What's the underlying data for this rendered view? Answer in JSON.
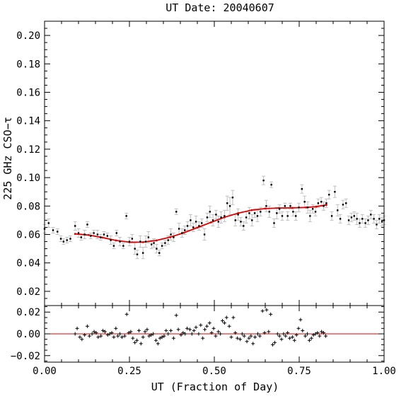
{
  "chart_data": [
    {
      "type": "scatter",
      "title": "UT Date: 20040607",
      "xlabel": "",
      "ylabel": "225 GHz CSO−τ",
      "xlim": [
        0.0,
        1.0
      ],
      "ylim": [
        0.01,
        0.21
      ],
      "yticks": [
        0.02,
        0.04,
        0.06,
        0.08,
        0.1,
        0.12,
        0.14,
        0.16,
        0.18,
        0.2
      ],
      "ytick_labels": [
        "0.02",
        "0.04",
        "0.06",
        "0.08",
        "0.10",
        "0.12",
        "0.14",
        "0.16",
        "0.18",
        "0.20"
      ],
      "grid": false,
      "colors": {
        "points": "#000000",
        "errorbars": "#c0c0c0",
        "fit": "#e00000"
      },
      "points": [
        [
          0.0,
          0.064,
          0.003
        ],
        [
          0.012,
          0.068,
          0.003
        ],
        [
          0.025,
          0.063,
          0.002
        ],
        [
          0.038,
          0.062,
          0.002
        ],
        [
          0.048,
          0.057,
          0.002
        ],
        [
          0.056,
          0.055,
          0.002
        ],
        [
          0.066,
          0.056,
          0.002
        ],
        [
          0.076,
          0.057,
          0.002
        ],
        [
          0.09,
          0.066,
          0.003
        ],
        [
          0.1,
          0.061,
          0.003
        ],
        [
          0.108,
          0.058,
          0.002
        ],
        [
          0.118,
          0.06,
          0.003
        ],
        [
          0.126,
          0.067,
          0.002
        ],
        [
          0.136,
          0.059,
          0.002
        ],
        [
          0.145,
          0.061,
          0.002
        ],
        [
          0.156,
          0.06,
          0.003
        ],
        [
          0.165,
          0.058,
          0.002
        ],
        [
          0.175,
          0.06,
          0.002
        ],
        [
          0.185,
          0.059,
          0.002
        ],
        [
          0.195,
          0.056,
          0.003
        ],
        [
          0.204,
          0.052,
          0.002
        ],
        [
          0.212,
          0.061,
          0.002
        ],
        [
          0.222,
          0.055,
          0.003
        ],
        [
          0.232,
          0.052,
          0.002
        ],
        [
          0.241,
          0.073,
          0.002
        ],
        [
          0.25,
          0.055,
          0.003
        ],
        [
          0.258,
          0.057,
          0.003
        ],
        [
          0.266,
          0.05,
          0.004
        ],
        [
          0.273,
          0.046,
          0.003
        ],
        [
          0.282,
          0.055,
          0.004
        ],
        [
          0.29,
          0.047,
          0.004
        ],
        [
          0.298,
          0.055,
          0.004
        ],
        [
          0.306,
          0.058,
          0.004
        ],
        [
          0.315,
          0.053,
          0.003
        ],
        [
          0.322,
          0.054,
          0.003
        ],
        [
          0.33,
          0.05,
          0.003
        ],
        [
          0.338,
          0.047,
          0.002
        ],
        [
          0.346,
          0.052,
          0.002
        ],
        [
          0.355,
          0.054,
          0.002
        ],
        [
          0.364,
          0.056,
          0.003
        ],
        [
          0.372,
          0.06,
          0.004
        ],
        [
          0.38,
          0.058,
          0.003
        ],
        [
          0.388,
          0.076,
          0.002
        ],
        [
          0.396,
          0.064,
          0.004
        ],
        [
          0.405,
          0.061,
          0.003
        ],
        [
          0.413,
          0.063,
          0.003
        ],
        [
          0.421,
          0.066,
          0.003
        ],
        [
          0.43,
          0.07,
          0.004
        ],
        [
          0.438,
          0.065,
          0.003
        ],
        [
          0.446,
          0.069,
          0.004
        ],
        [
          0.455,
          0.066,
          0.003
        ],
        [
          0.463,
          0.068,
          0.003
        ],
        [
          0.471,
          0.06,
          0.004
        ],
        [
          0.479,
          0.072,
          0.003
        ],
        [
          0.487,
          0.076,
          0.004
        ],
        [
          0.496,
          0.07,
          0.004
        ],
        [
          0.505,
          0.074,
          0.003
        ],
        [
          0.512,
          0.069,
          0.004
        ],
        [
          0.52,
          0.072,
          0.004
        ],
        [
          0.53,
          0.073,
          0.004
        ],
        [
          0.538,
          0.082,
          0.005
        ],
        [
          0.546,
          0.08,
          0.006
        ],
        [
          0.554,
          0.086,
          0.005
        ],
        [
          0.562,
          0.07,
          0.004
        ],
        [
          0.57,
          0.074,
          0.004
        ],
        [
          0.578,
          0.069,
          0.003
        ],
        [
          0.586,
          0.066,
          0.003
        ],
        [
          0.594,
          0.072,
          0.004
        ],
        [
          0.603,
          0.075,
          0.004
        ],
        [
          0.611,
          0.07,
          0.004
        ],
        [
          0.619,
          0.075,
          0.003
        ],
        [
          0.627,
          0.073,
          0.004
        ],
        [
          0.636,
          0.076,
          0.003
        ],
        [
          0.645,
          0.098,
          0.003
        ],
        [
          0.653,
          0.08,
          0.004
        ],
        [
          0.662,
          0.076,
          0.004
        ],
        [
          0.668,
          0.095,
          0.002
        ],
        [
          0.676,
          0.068,
          0.003
        ],
        [
          0.684,
          0.075,
          0.004
        ],
        [
          0.692,
          0.078,
          0.003
        ],
        [
          0.7,
          0.073,
          0.003
        ],
        [
          0.708,
          0.08,
          0.002
        ],
        [
          0.716,
          0.073,
          0.003
        ],
        [
          0.724,
          0.08,
          0.002
        ],
        [
          0.732,
          0.076,
          0.003
        ],
        [
          0.74,
          0.073,
          0.003
        ],
        [
          0.749,
          0.079,
          0.003
        ],
        [
          0.758,
          0.092,
          0.003
        ],
        [
          0.766,
          0.083,
          0.004
        ],
        [
          0.775,
          0.079,
          0.004
        ],
        [
          0.782,
          0.073,
          0.004
        ],
        [
          0.79,
          0.078,
          0.003
        ],
        [
          0.798,
          0.076,
          0.003
        ],
        [
          0.806,
          0.082,
          0.003
        ],
        [
          0.815,
          0.083,
          0.003
        ],
        [
          0.822,
          0.08,
          0.003
        ],
        [
          0.83,
          0.082,
          0.003
        ],
        [
          0.838,
          0.088,
          0.003
        ],
        [
          0.846,
          0.073,
          0.003
        ],
        [
          0.855,
          0.09,
          0.004
        ],
        [
          0.863,
          0.077,
          0.004
        ],
        [
          0.871,
          0.071,
          0.003
        ],
        [
          0.879,
          0.081,
          0.003
        ],
        [
          0.888,
          0.082,
          0.003
        ],
        [
          0.896,
          0.07,
          0.003
        ],
        [
          0.904,
          0.072,
          0.003
        ],
        [
          0.912,
          0.073,
          0.003
        ],
        [
          0.92,
          0.071,
          0.004
        ],
        [
          0.928,
          0.068,
          0.003
        ],
        [
          0.936,
          0.071,
          0.003
        ],
        [
          0.945,
          0.068,
          0.003
        ],
        [
          0.953,
          0.07,
          0.003
        ],
        [
          0.961,
          0.074,
          0.003
        ],
        [
          0.97,
          0.071,
          0.003
        ],
        [
          0.978,
          0.067,
          0.003
        ],
        [
          0.986,
          0.071,
          0.003
        ],
        [
          0.994,
          0.069,
          0.003
        ],
        [
          1.0,
          0.07,
          0.003
        ]
      ],
      "fit_curve": [
        [
          0.09,
          0.0604
        ],
        [
          0.13,
          0.0596
        ],
        [
          0.17,
          0.0578
        ],
        [
          0.21,
          0.0558
        ],
        [
          0.25,
          0.0546
        ],
        [
          0.29,
          0.0546
        ],
        [
          0.33,
          0.0558
        ],
        [
          0.37,
          0.0581
        ],
        [
          0.41,
          0.0612
        ],
        [
          0.45,
          0.0648
        ],
        [
          0.49,
          0.0685
        ],
        [
          0.53,
          0.0721
        ],
        [
          0.57,
          0.075
        ],
        [
          0.61,
          0.0771
        ],
        [
          0.65,
          0.0782
        ],
        [
          0.69,
          0.0786
        ],
        [
          0.73,
          0.0787
        ],
        [
          0.77,
          0.079
        ],
        [
          0.8,
          0.0796
        ],
        [
          0.83,
          0.0808
        ]
      ]
    },
    {
      "type": "scatter",
      "title": "",
      "xlabel": "UT (Fraction of Day)",
      "ylabel": "",
      "xlim": [
        0.0,
        1.0
      ],
      "ylim": [
        -0.026,
        0.026
      ],
      "xticks": [
        0.0,
        0.25,
        0.5,
        0.75,
        1.0
      ],
      "xtick_labels": [
        "0.00",
        "0.25",
        "0.50",
        "0.75",
        "1.00"
      ],
      "yticks": [
        -0.02,
        0.0,
        0.02
      ],
      "ytick_labels": [
        "−0.02",
        "0.00",
        "0.02"
      ],
      "zero_line": 0.0,
      "grid": false,
      "colors": {
        "points": "#000000",
        "zero_line": "#e00000"
      },
      "residuals": [
        [
          0.09,
          0.0
        ],
        [
          0.096,
          0.005
        ],
        [
          0.104,
          -0.003
        ],
        [
          0.11,
          -0.005
        ],
        [
          0.118,
          -0.001
        ],
        [
          0.126,
          0.007
        ],
        [
          0.132,
          -0.002
        ],
        [
          0.14,
          0.0
        ],
        [
          0.146,
          0.002
        ],
        [
          0.152,
          0.001
        ],
        [
          0.158,
          -0.003
        ],
        [
          0.166,
          -0.002
        ],
        [
          0.172,
          0.003
        ],
        [
          0.178,
          0.002
        ],
        [
          0.186,
          -0.001
        ],
        [
          0.192,
          0.0
        ],
        [
          0.198,
          0.001
        ],
        [
          0.204,
          -0.003
        ],
        [
          0.21,
          0.005
        ],
        [
          0.216,
          -0.002
        ],
        [
          0.222,
          0.0
        ],
        [
          0.228,
          -0.003
        ],
        [
          0.236,
          -0.002
        ],
        [
          0.242,
          0.018
        ],
        [
          0.248,
          0.001
        ],
        [
          0.254,
          0.002
        ],
        [
          0.26,
          -0.004
        ],
        [
          0.266,
          -0.008
        ],
        [
          0.272,
          -0.006
        ],
        [
          0.278,
          0.003
        ],
        [
          0.284,
          -0.009
        ],
        [
          0.29,
          -0.003
        ],
        [
          0.296,
          0.002
        ],
        [
          0.302,
          0.004
        ],
        [
          0.308,
          -0.002
        ],
        [
          0.314,
          -0.001
        ],
        [
          0.32,
          0.0
        ],
        [
          0.328,
          -0.006
        ],
        [
          0.334,
          -0.009
        ],
        [
          0.34,
          -0.004
        ],
        [
          0.346,
          -0.003
        ],
        [
          0.352,
          -0.002
        ],
        [
          0.358,
          0.003
        ],
        [
          0.364,
          0.0
        ],
        [
          0.372,
          0.003
        ],
        [
          0.38,
          -0.004
        ],
        [
          0.388,
          0.017
        ],
        [
          0.394,
          0.004
        ],
        [
          0.402,
          -0.001
        ],
        [
          0.408,
          0.001
        ],
        [
          0.414,
          0.0
        ],
        [
          0.42,
          0.005
        ],
        [
          0.428,
          0.004
        ],
        [
          0.434,
          0.0
        ],
        [
          0.44,
          0.003
        ],
        [
          0.446,
          0.006
        ],
        [
          0.454,
          0.0
        ],
        [
          0.46,
          0.008
        ],
        [
          0.466,
          -0.004
        ],
        [
          0.472,
          0.004
        ],
        [
          0.478,
          0.007
        ],
        [
          0.486,
          0.01
        ],
        [
          0.492,
          0.001
        ],
        [
          0.498,
          0.005
        ],
        [
          0.504,
          -0.002
        ],
        [
          0.512,
          0.002
        ],
        [
          0.518,
          0.0
        ],
        [
          0.524,
          0.012
        ],
        [
          0.53,
          0.01
        ],
        [
          0.536,
          0.015
        ],
        [
          0.544,
          0.007
        ],
        [
          0.55,
          -0.003
        ],
        [
          0.556,
          0.015
        ],
        [
          0.562,
          0.001
        ],
        [
          0.568,
          -0.004
        ],
        [
          0.576,
          -0.005
        ],
        [
          0.582,
          0.0
        ],
        [
          0.588,
          -0.002
        ],
        [
          0.596,
          -0.007
        ],
        [
          0.602,
          -0.004
        ],
        [
          0.608,
          -0.002
        ],
        [
          0.614,
          -0.009
        ],
        [
          0.62,
          -0.003
        ],
        [
          0.628,
          0.0
        ],
        [
          0.634,
          -0.002
        ],
        [
          0.642,
          0.021
        ],
        [
          0.648,
          0.001
        ],
        [
          0.654,
          0.022
        ],
        [
          0.66,
          0.002
        ],
        [
          0.666,
          0.018
        ],
        [
          0.672,
          -0.01
        ],
        [
          0.678,
          -0.008
        ],
        [
          0.686,
          0.0
        ],
        [
          0.692,
          -0.002
        ],
        [
          0.698,
          -0.005
        ],
        [
          0.704,
          0.0
        ],
        [
          0.71,
          -0.002
        ],
        [
          0.716,
          0.001
        ],
        [
          0.722,
          -0.004
        ],
        [
          0.73,
          -0.003
        ],
        [
          0.736,
          -0.006
        ],
        [
          0.742,
          -0.001
        ],
        [
          0.748,
          0.005
        ],
        [
          0.754,
          0.013
        ],
        [
          0.76,
          0.003
        ],
        [
          0.768,
          -0.002
        ],
        [
          0.774,
          0.0
        ],
        [
          0.78,
          -0.006
        ],
        [
          0.786,
          -0.004
        ],
        [
          0.792,
          -0.001
        ],
        [
          0.798,
          0.0
        ],
        [
          0.804,
          0.001
        ],
        [
          0.81,
          -0.002
        ],
        [
          0.816,
          0.002
        ],
        [
          0.822,
          0.001
        ],
        [
          0.828,
          -0.002
        ]
      ]
    }
  ]
}
